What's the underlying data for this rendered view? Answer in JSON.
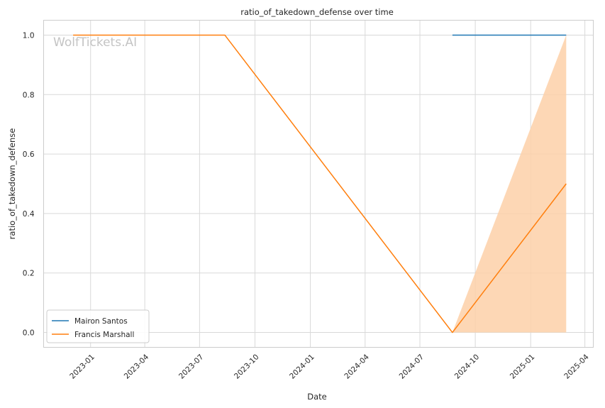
{
  "chart_data": {
    "type": "line",
    "title": "ratio_of_takedown_defense over time",
    "xlabel": "Date",
    "ylabel": "ratio_of_takedown_defense",
    "watermark": "WolfTickets.AI",
    "grid": true,
    "legend_position": "lower-left",
    "x_range": [
      "2022-10-15",
      "2025-04-15"
    ],
    "y_range": [
      -0.05,
      1.05
    ],
    "x_ticks": [
      "2023-01",
      "2023-04",
      "2023-07",
      "2023-10",
      "2024-01",
      "2024-04",
      "2024-07",
      "2024-10",
      "2025-01",
      "2025-04"
    ],
    "y_ticks": [
      "0.0",
      "0.2",
      "0.4",
      "0.6",
      "0.8",
      "1.0"
    ],
    "series": [
      {
        "name": "Mairon Santos",
        "color": "#1f77b4",
        "points": [
          {
            "x": "2024-08-24",
            "y": 1.0
          },
          {
            "x": "2025-03-01",
            "y": 1.0
          }
        ]
      },
      {
        "name": "Francis Marshall",
        "color": "#ff7f0e",
        "band_color": "#fdd0a8",
        "points": [
          {
            "x": "2022-12-03",
            "y": 1.0
          },
          {
            "x": "2023-08-12",
            "y": 1.0
          },
          {
            "x": "2024-08-24",
            "y": 0.0
          },
          {
            "x": "2025-03-01",
            "y": 0.5
          }
        ],
        "band": [
          {
            "x": "2024-08-24",
            "low": 0.0,
            "high": 0.0
          },
          {
            "x": "2025-03-01",
            "low": 0.0,
            "high": 1.0
          }
        ]
      }
    ]
  }
}
